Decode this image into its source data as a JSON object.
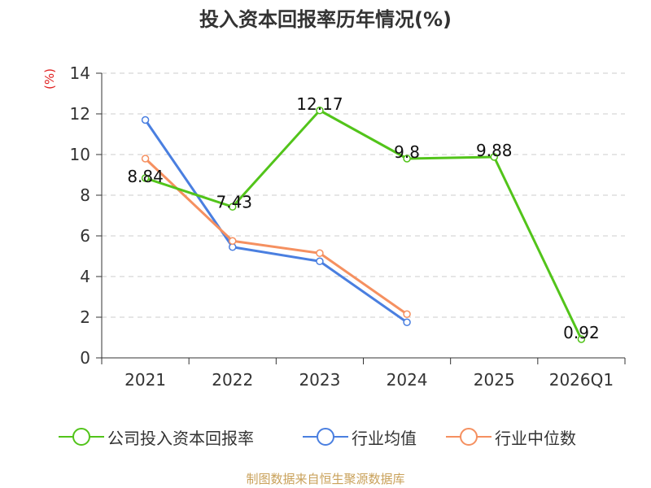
{
  "title": "投入资本回报率历年情况(%)",
  "unit": "(%)",
  "source": "制图数据来自恒生聚源数据库",
  "chart_data": {
    "type": "line",
    "title": "投入资本回报率历年情况(%)",
    "ylabel": "(%)",
    "categories": [
      "2021",
      "2022",
      "2023",
      "2024",
      "2025",
      "2026Q1"
    ],
    "ylim": [
      0,
      14
    ],
    "yticks": [
      0,
      2,
      4,
      6,
      8,
      10,
      12,
      14
    ],
    "grid": true,
    "legend_position": "bottom",
    "series": [
      {
        "name": "公司投入资本回报率",
        "color": "#52c41a",
        "values": [
          8.84,
          7.43,
          12.17,
          9.8,
          9.88,
          0.92
        ],
        "labels": [
          "8.84",
          "7.43",
          "12.17",
          "9.8",
          "9.88",
          "0.92"
        ]
      },
      {
        "name": "行业均值",
        "color": "#4a7fe0",
        "values": [
          11.7,
          5.45,
          4.75,
          1.75,
          null,
          null
        ]
      },
      {
        "name": "行业中位数",
        "color": "#f59060",
        "values": [
          9.8,
          5.75,
          5.15,
          2.15,
          null,
          null
        ]
      }
    ]
  }
}
